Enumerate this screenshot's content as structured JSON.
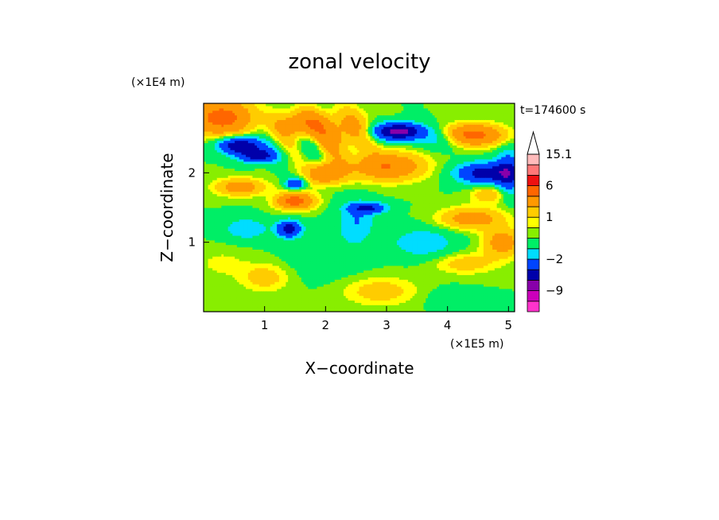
{
  "chart_data": {
    "type": "heatmap",
    "title": "zonal velocity",
    "xlabel": "X−coordinate",
    "ylabel": "Z−coordinate",
    "x_unit": "(×1E5 m)",
    "y_unit": "(×1E4 m)",
    "time_label": "t=174600 s",
    "xlim": [
      0,
      5.1
    ],
    "ylim": [
      0,
      3.0
    ],
    "x_ticks": [
      1,
      2,
      3,
      4,
      5
    ],
    "y_ticks": [
      1,
      2
    ],
    "grid": false,
    "colorbar": {
      "placement": "right",
      "extend": "max",
      "labels": [
        {
          "value": 15.1,
          "text": "15.1"
        },
        {
          "value": 6,
          "text": "6"
        },
        {
          "value": 1,
          "text": "1"
        },
        {
          "value": -2,
          "text": "−2"
        },
        {
          "value": -9,
          "text": "−9"
        }
      ],
      "levels": [
        {
          "lo": -15,
          "hi": -12,
          "color": "#ff33cc"
        },
        {
          "lo": -12,
          "hi": -9,
          "color": "#cc00bb"
        },
        {
          "lo": -9,
          "hi": -6,
          "color": "#8800aa"
        },
        {
          "lo": -6,
          "hi": -4,
          "color": "#0000aa"
        },
        {
          "lo": -4,
          "hi": -2,
          "color": "#0044ff"
        },
        {
          "lo": -2,
          "hi": -1,
          "color": "#00ddff"
        },
        {
          "lo": -1,
          "hi": 0,
          "color": "#00ee66"
        },
        {
          "lo": 0,
          "hi": 0.5,
          "color": "#88ee00"
        },
        {
          "lo": 0.5,
          "hi": 1,
          "color": "#ffff00"
        },
        {
          "lo": 1,
          "hi": 2,
          "color": "#ffcc00"
        },
        {
          "lo": 2,
          "hi": 4,
          "color": "#ff9900"
        },
        {
          "lo": 4,
          "hi": 6,
          "color": "#ff6600"
        },
        {
          "lo": 6,
          "hi": 9,
          "color": "#ee1111"
        },
        {
          "lo": 9,
          "hi": 12,
          "color": "#ff7777"
        },
        {
          "lo": 12,
          "hi": 15.1,
          "color": "#ffbbbb"
        }
      ],
      "over_color": "#ffffff"
    },
    "field_features": [
      {
        "x": 0.3,
        "z": 2.8,
        "value": 5,
        "sx": 0.5,
        "sz": 0.25
      },
      {
        "x": 0.6,
        "z": 2.4,
        "value": -6,
        "sx": 0.35,
        "sz": 0.12
      },
      {
        "x": 0.9,
        "z": 2.25,
        "value": -5,
        "sx": 0.3,
        "sz": 0.1
      },
      {
        "x": 1.6,
        "z": 2.7,
        "value": 4,
        "sx": 0.4,
        "sz": 0.2
      },
      {
        "x": 2.3,
        "z": 2.6,
        "value": 3,
        "sx": 0.4,
        "sz": 0.3
      },
      {
        "x": 3.2,
        "z": 2.6,
        "value": -7,
        "sx": 0.4,
        "sz": 0.12
      },
      {
        "x": 3.9,
        "z": 2.5,
        "value": -2,
        "sx": 0.35,
        "sz": 0.15
      },
      {
        "x": 4.4,
        "z": 2.55,
        "value": 5,
        "sx": 0.5,
        "sz": 0.15
      },
      {
        "x": 4.6,
        "z": 2.0,
        "value": -5,
        "sx": 0.45,
        "sz": 0.15
      },
      {
        "x": 5.0,
        "z": 2.0,
        "value": -4,
        "sx": 0.2,
        "sz": 0.3
      },
      {
        "x": 3.0,
        "z": 2.1,
        "value": 4,
        "sx": 0.6,
        "sz": 0.2
      },
      {
        "x": 2.0,
        "z": 2.0,
        "value": 4,
        "sx": 0.3,
        "sz": 0.15
      },
      {
        "x": 1.5,
        "z": 1.85,
        "value": -4,
        "sx": 0.15,
        "sz": 0.08
      },
      {
        "x": 1.5,
        "z": 1.6,
        "value": 5,
        "sx": 0.3,
        "sz": 0.12
      },
      {
        "x": 0.6,
        "z": 1.8,
        "value": 3,
        "sx": 0.4,
        "sz": 0.12
      },
      {
        "x": 2.7,
        "z": 1.5,
        "value": -4,
        "sx": 0.3,
        "sz": 0.08
      },
      {
        "x": 1.4,
        "z": 1.2,
        "value": -5,
        "sx": 0.2,
        "sz": 0.12
      },
      {
        "x": 0.7,
        "z": 1.2,
        "value": -2,
        "sx": 0.35,
        "sz": 0.15
      },
      {
        "x": 2.5,
        "z": 1.3,
        "value": -2,
        "sx": 0.3,
        "sz": 0.3
      },
      {
        "x": 4.4,
        "z": 1.35,
        "value": 3,
        "sx": 0.5,
        "sz": 0.15
      },
      {
        "x": 3.6,
        "z": 1.0,
        "value": -2,
        "sx": 0.5,
        "sz": 0.2
      },
      {
        "x": 4.9,
        "z": 1.0,
        "value": 3,
        "sx": 0.3,
        "sz": 0.2
      },
      {
        "x": 4.7,
        "z": 1.7,
        "value": 2,
        "sx": 0.3,
        "sz": 0.12
      },
      {
        "x": 0.3,
        "z": 0.7,
        "value": 0.7,
        "sx": 0.4,
        "sz": 0.2
      },
      {
        "x": 1.0,
        "z": 0.5,
        "value": 1.5,
        "sx": 0.4,
        "sz": 0.2
      },
      {
        "x": 2.9,
        "z": 0.3,
        "value": 1.5,
        "sx": 0.6,
        "sz": 0.2
      },
      {
        "x": 4.3,
        "z": 0.7,
        "value": 1.5,
        "sx": 0.5,
        "sz": 0.15
      },
      {
        "x": 2.0,
        "z": 0.8,
        "value": -0.8,
        "sx": 0.6,
        "sz": 0.3
      },
      {
        "x": 4.0,
        "z": 0.2,
        "value": -0.5,
        "sx": 0.4,
        "sz": 0.15
      }
    ]
  }
}
